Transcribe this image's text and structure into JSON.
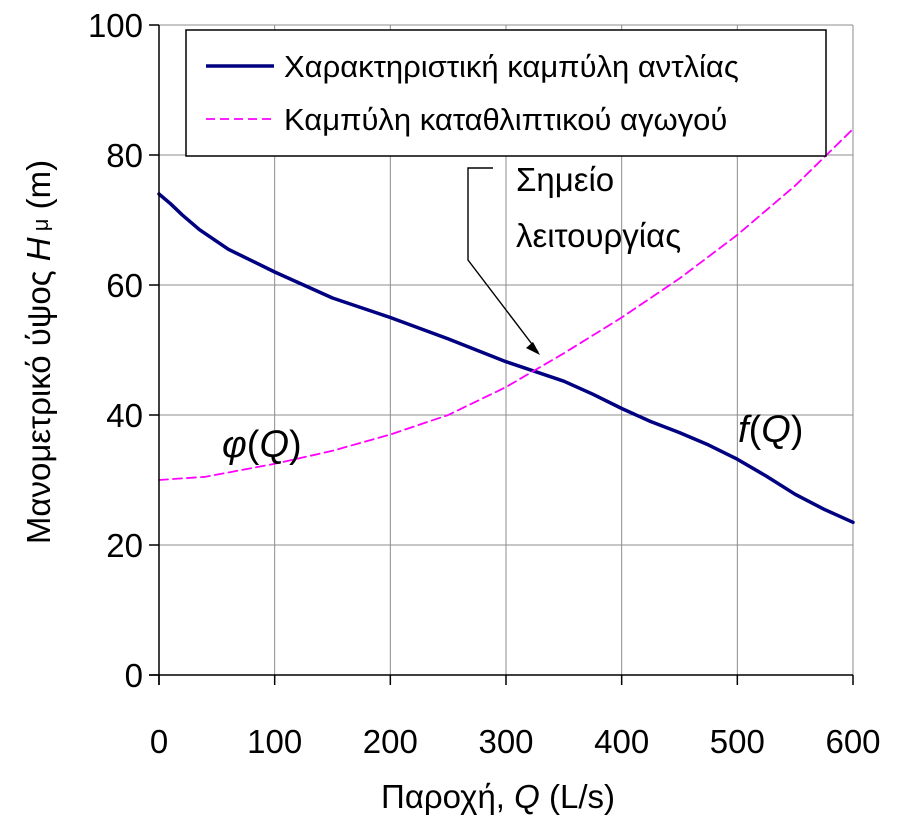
{
  "chart_data": {
    "type": "line",
    "xlabel": {
      "prefix": "Παροχή, ",
      "var": "Q",
      "unit": " (L/s)"
    },
    "ylabel": {
      "prefix": "Μανομετρικό ύψος ",
      "var": "H",
      "sub": " μ",
      "unit": " (m)"
    },
    "xlim": [
      0,
      600
    ],
    "ylim": [
      0,
      100
    ],
    "x_ticks": [
      0,
      100,
      200,
      300,
      400,
      500,
      600
    ],
    "y_ticks": [
      0,
      20,
      40,
      60,
      80,
      100
    ],
    "grid": true,
    "legend_position": "top-right",
    "series": [
      {
        "name": "Χαρακτηριστική καμπύλη αντλίας",
        "color": "#000080",
        "style": "solid",
        "x": [
          0,
          10,
          20,
          35,
          60,
          100,
          150,
          200,
          250,
          300,
          350,
          375,
          400,
          425,
          450,
          475,
          500,
          525,
          550,
          575,
          600
        ],
        "y": [
          74,
          72.5,
          70.8,
          68.5,
          65.5,
          62,
          58,
          55,
          51.7,
          48.2,
          45.2,
          43.2,
          41,
          39,
          37.3,
          35.4,
          33.2,
          30.6,
          27.8,
          25.5,
          23.5
        ]
      },
      {
        "name": "Καμπύλη καταθλιπτικού αγωγού",
        "color": "#FF00FF",
        "style": "dashed",
        "x": [
          0,
          40,
          100,
          150,
          200,
          250,
          300,
          350,
          400,
          450,
          500,
          550,
          600
        ],
        "y": [
          30,
          30.5,
          32.5,
          34.5,
          37,
          40,
          44.3,
          49.5,
          55,
          61,
          67.7,
          75.3,
          84
        ]
      }
    ],
    "annotations": [
      {
        "lines": [
          "Σημείο",
          "λειτουργίας"
        ]
      }
    ],
    "curve_labels": [
      {
        "func": "φ",
        "arg": "Q"
      },
      {
        "func": "f",
        "arg": "Q"
      }
    ]
  },
  "colors": {
    "background": "#ffffff",
    "grid": "#8c8c8c",
    "axis": "#000000",
    "pump_curve": "#000080",
    "pipe_curve": "#FF00FF"
  }
}
